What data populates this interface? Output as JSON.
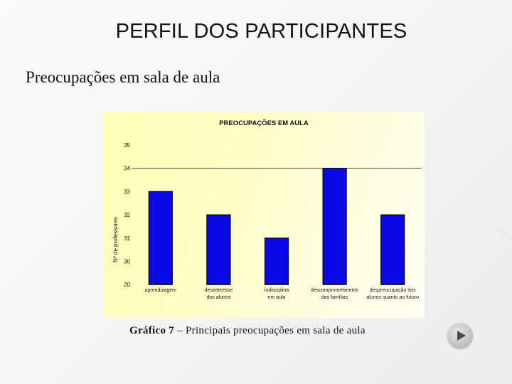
{
  "slide": {
    "title": "PERFIL DOS PARTICIPANTES",
    "subtitle": "Preocupações em sala de aula",
    "caption_bold": "Gráfico 7",
    "caption_rest": " – Principais preocupações em sala de aula"
  },
  "colors": {
    "bar": "#0a0ae6",
    "panel": "#fffcc6"
  },
  "chart_data": {
    "type": "bar",
    "title": "PREOCUPAÇÕES EM AULA",
    "ylabel": "Nº de professores",
    "xlabel": "",
    "yticks": [
      "35",
      "34",
      "33",
      "32",
      "31",
      "30",
      "20"
    ],
    "categories": [
      [
        "aprendizagem"
      ],
      [
        "desinteresse",
        "dos alunos"
      ],
      [
        "indisciplina",
        "em aula"
      ],
      [
        "descomprometimento",
        "das famílias"
      ],
      [
        "despreocupação dos",
        "alunos quanto ao futuro"
      ]
    ],
    "values": [
      33,
      32,
      31,
      34,
      32
    ],
    "reference_line": 34,
    "grid": false,
    "legend": "none"
  }
}
